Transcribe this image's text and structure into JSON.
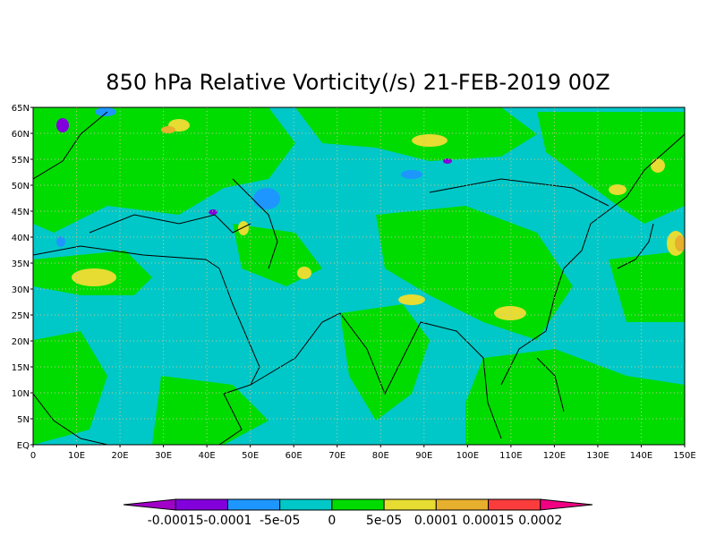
{
  "title": "850 hPa Relative Vorticity(/s) 21-FEB-2019 00Z",
  "map": {
    "lat_labels": [
      "EQ",
      "5N",
      "10N",
      "15N",
      "20N",
      "25N",
      "30N",
      "35N",
      "40N",
      "45N",
      "50N",
      "55N",
      "60N",
      "65N"
    ],
    "lon_labels": [
      "0",
      "10E",
      "20E",
      "30E",
      "40E",
      "50E",
      "60E",
      "70E",
      "80E",
      "90E",
      "100E",
      "110E",
      "120E",
      "130E",
      "140E",
      "150E"
    ]
  },
  "colorbar": {
    "labels": [
      "-0.00015",
      "-0.0001",
      "-5e-05",
      "0",
      "5e-05",
      "0.0001",
      "0.00015",
      "0.0002"
    ],
    "colors": [
      "#a000c8",
      "#8200dc",
      "#1e96ff",
      "#00c8c8",
      "#00dc00",
      "#e6dc32",
      "#e6af2d",
      "#fa3c3c",
      "#f00082"
    ]
  }
}
